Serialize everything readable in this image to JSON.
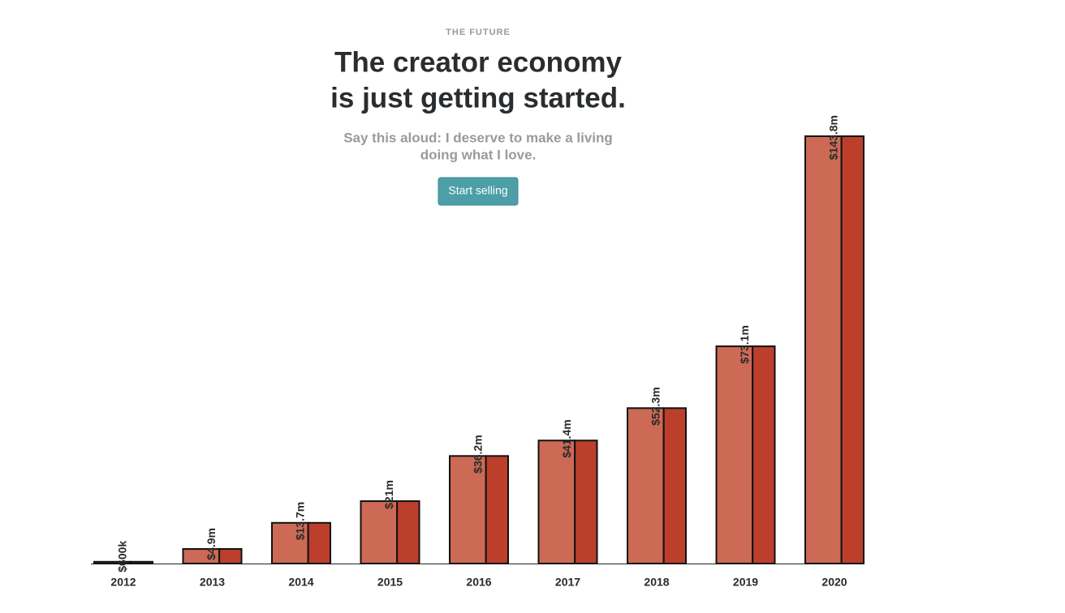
{
  "page": {
    "eyebrow": "THE FUTURE",
    "headline": [
      "The creator economy",
      "is just getting started."
    ],
    "subtitle": [
      "Say this aloud: I deserve to make a living",
      "doing what I love."
    ],
    "button": "Start selling"
  },
  "chart_data": {
    "type": "bar",
    "categories": [
      "2012",
      "2013",
      "2014",
      "2015",
      "2016",
      "2017",
      "2018",
      "2019",
      "2020"
    ],
    "values": [
      0.6,
      4.9,
      13.7,
      21,
      36.2,
      41.4,
      52.3,
      73.1,
      143.8
    ],
    "value_labels": [
      "$600k",
      "$4.9m",
      "$13.7m",
      "$21m",
      "$36.2m",
      "$41.4m",
      "$52.3m",
      "$73.1m",
      "$143.8m"
    ],
    "color": "#cd6a55",
    "side_color": "#bc3f2c"
  }
}
